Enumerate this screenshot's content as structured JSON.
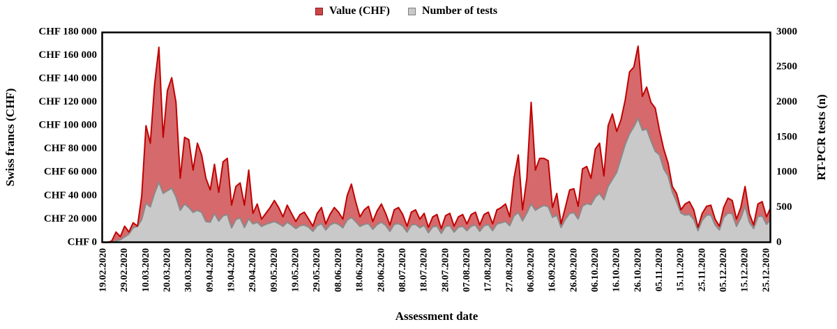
{
  "legend": {
    "items": [
      {
        "label": "Value (CHF)",
        "swatch_fill": "#cc4646",
        "swatch_border": "#8f1a1c"
      },
      {
        "label": "Number of tests",
        "swatch_fill": "#c9c9c9",
        "swatch_border": "#7f7f7f"
      }
    ]
  },
  "y_left": {
    "title": "Swiss francs (CHF)",
    "ticks": [
      "CHF 180 000",
      "CHF 160 000",
      "CHF 140 000",
      "CHF 120 000",
      "CHF 100 000",
      "CHF 80 000",
      "CHF 60 000",
      "CHF 40 000",
      "CHF 20 000",
      "CHF 0"
    ]
  },
  "y_right": {
    "title": "RT-PCR tests (n)",
    "ticks": [
      "3000",
      "2500",
      "2000",
      "1500",
      "1000",
      "500",
      "0"
    ]
  },
  "x_axis": {
    "title": "Assessment date",
    "tick_labels": [
      "19.02.2020",
      "29.02.2020",
      "10.03.2020",
      "20.03.2020",
      "30.03.2020",
      "09.04.2020",
      "19.04.2020",
      "29.04.2020",
      "09.05.2020",
      "19.05.2020",
      "29.05.2020",
      "08.06.2020",
      "18.06.2020",
      "28.06.2020",
      "08.07.2020",
      "18.07.2020",
      "28.07.2020",
      "07.08.2020",
      "17.08.2020",
      "27.08.2020",
      "06.09.2020",
      "16.09.2020",
      "26.09.2020",
      "06.10.2020",
      "16.10.2020",
      "26.10.2020",
      "05.11.2020",
      "15.11.2020",
      "25.11.2020",
      "05.12.2020",
      "15.12.2020",
      "25.12.2020"
    ]
  },
  "chart_data": {
    "type": "area",
    "title": "",
    "x_start_label": "19.02.2020",
    "x_step_days": 2,
    "tick_interval_days": 10,
    "ylim_left": [
      0,
      180000
    ],
    "ylim_right": [
      0,
      3000
    ],
    "grid": false,
    "legend_position": "top-center",
    "series": [
      {
        "name": "Value (CHF)",
        "axis": "left",
        "fill": "#d5696b",
        "line": "#c00000",
        "values": [
          0,
          0,
          1500,
          9000,
          5000,
          14000,
          9000,
          17000,
          14000,
          40000,
          100000,
          85000,
          135000,
          167000,
          90000,
          130000,
          141000,
          120000,
          55000,
          90000,
          88000,
          62000,
          85000,
          75000,
          55000,
          45000,
          67000,
          43000,
          69000,
          72000,
          32000,
          48000,
          51000,
          32000,
          62000,
          25000,
          33000,
          20000,
          25000,
          30000,
          36000,
          30000,
          22000,
          32000,
          25000,
          18000,
          24000,
          26000,
          20000,
          14000,
          25000,
          30000,
          16000,
          24000,
          30000,
          26000,
          20000,
          40000,
          50000,
          35000,
          22000,
          28000,
          31000,
          18000,
          27000,
          33000,
          25000,
          15000,
          28000,
          30000,
          24000,
          14000,
          26000,
          28000,
          20000,
          25000,
          13000,
          22000,
          24000,
          12000,
          23000,
          25000,
          14000,
          22000,
          24000,
          16000,
          24000,
          26000,
          15000,
          24000,
          26000,
          16000,
          28000,
          30000,
          33000,
          22000,
          55000,
          75000,
          28000,
          55000,
          120000,
          62000,
          72000,
          72000,
          70000,
          30000,
          42000,
          16000,
          30000,
          45000,
          46000,
          31000,
          63000,
          65000,
          55000,
          80000,
          85000,
          57000,
          100000,
          110000,
          95000,
          105000,
          122000,
          146000,
          150000,
          168000,
          125000,
          133000,
          120000,
          115000,
          96000,
          80000,
          68000,
          48000,
          42000,
          28000,
          33000,
          35000,
          28000,
          13000,
          25000,
          31000,
          32000,
          20000,
          14000,
          30000,
          38000,
          36000,
          20000,
          30000,
          48000,
          25000,
          15000,
          33000,
          35000,
          22000,
          30000
        ]
      },
      {
        "name": "Number of tests",
        "axis": "right",
        "fill": "#c9c9c9",
        "line": "#8a8a8a",
        "values": [
          0,
          0,
          5,
          25,
          40,
          80,
          120,
          210,
          230,
          330,
          560,
          510,
          700,
          860,
          700,
          740,
          775,
          650,
          460,
          550,
          500,
          430,
          460,
          430,
          300,
          290,
          415,
          305,
          380,
          400,
          210,
          330,
          350,
          215,
          340,
          265,
          290,
          230,
          260,
          280,
          300,
          270,
          230,
          290,
          250,
          200,
          240,
          250,
          220,
          160,
          240,
          270,
          180,
          250,
          280,
          260,
          210,
          320,
          360,
          300,
          230,
          260,
          270,
          190,
          255,
          290,
          245,
          160,
          260,
          270,
          235,
          150,
          250,
          260,
          210,
          245,
          140,
          225,
          235,
          130,
          230,
          240,
          150,
          220,
          230,
          170,
          235,
          250,
          160,
          240,
          255,
          170,
          265,
          280,
          300,
          240,
          380,
          430,
          310,
          420,
          550,
          460,
          500,
          530,
          510,
          360,
          390,
          215,
          330,
          415,
          425,
          335,
          520,
          555,
          540,
          650,
          700,
          610,
          800,
          900,
          1000,
          1200,
          1400,
          1550,
          1650,
          1770,
          1600,
          1620,
          1450,
          1300,
          1250,
          1050,
          950,
          720,
          580,
          420,
          390,
          400,
          330,
          170,
          320,
          390,
          395,
          250,
          180,
          360,
          420,
          410,
          230,
          350,
          520,
          290,
          200,
          370,
          380,
          260,
          330
        ]
      }
    ]
  }
}
